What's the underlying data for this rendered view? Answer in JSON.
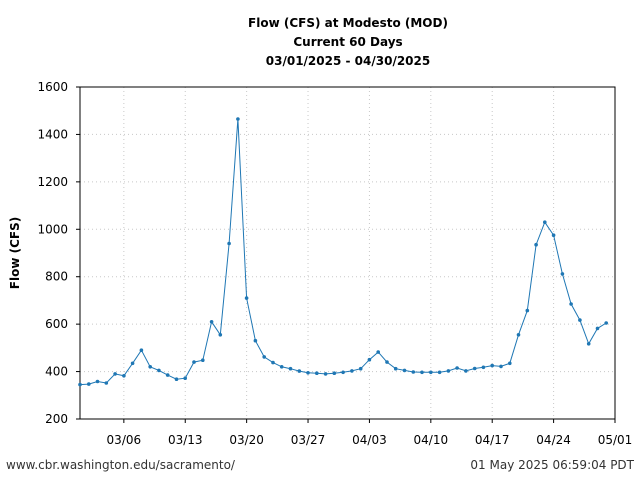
{
  "chart_data": {
    "type": "line",
    "title_lines": [
      "Flow (CFS) at Modesto (MOD)",
      "Current 60 Days",
      "03/01/2025 - 04/30/2025"
    ],
    "xlabel": "",
    "ylabel": "Flow (CFS)",
    "x_start": "2025-03-01",
    "ylim": [
      200,
      1600
    ],
    "y_ticks": [
      200,
      400,
      600,
      800,
      1000,
      1200,
      1400,
      1600
    ],
    "x_ticks": [
      {
        "date": "2025-03-06",
        "label": "03/06"
      },
      {
        "date": "2025-03-13",
        "label": "03/13"
      },
      {
        "date": "2025-03-20",
        "label": "03/20"
      },
      {
        "date": "2025-03-27",
        "label": "03/27"
      },
      {
        "date": "2025-04-03",
        "label": "04/03"
      },
      {
        "date": "2025-04-10",
        "label": "04/10"
      },
      {
        "date": "2025-04-17",
        "label": "04/17"
      },
      {
        "date": "2025-04-24",
        "label": "04/24"
      },
      {
        "date": "2025-05-01",
        "label": "05/01"
      }
    ],
    "grid": true,
    "color": "#1f77b4",
    "series": [
      {
        "dates": [
          "2025-03-01",
          "2025-03-02",
          "2025-03-03",
          "2025-03-04",
          "2025-03-05",
          "2025-03-06",
          "2025-03-07",
          "2025-03-08",
          "2025-03-09",
          "2025-03-10",
          "2025-03-11",
          "2025-03-12",
          "2025-03-13",
          "2025-03-14",
          "2025-03-15",
          "2025-03-16",
          "2025-03-17",
          "2025-03-18",
          "2025-03-19",
          "2025-03-20",
          "2025-03-21",
          "2025-03-22",
          "2025-03-23",
          "2025-03-24",
          "2025-03-25",
          "2025-03-26",
          "2025-03-27",
          "2025-03-28",
          "2025-03-29",
          "2025-03-30",
          "2025-03-31",
          "2025-04-01",
          "2025-04-02",
          "2025-04-03",
          "2025-04-04",
          "2025-04-05",
          "2025-04-06",
          "2025-04-07",
          "2025-04-08",
          "2025-04-09",
          "2025-04-10",
          "2025-04-11",
          "2025-04-12",
          "2025-04-13",
          "2025-04-14",
          "2025-04-15",
          "2025-04-16",
          "2025-04-17",
          "2025-04-18",
          "2025-04-19",
          "2025-04-20",
          "2025-04-21",
          "2025-04-22",
          "2025-04-23",
          "2025-04-24",
          "2025-04-25",
          "2025-04-26",
          "2025-04-27",
          "2025-04-28",
          "2025-04-29",
          "2025-04-30"
        ],
        "values": [
          345,
          347,
          358,
          352,
          390,
          382,
          435,
          490,
          420,
          405,
          385,
          368,
          372,
          440,
          448,
          610,
          555,
          940,
          1465,
          710,
          530,
          462,
          438,
          420,
          412,
          402,
          395,
          393,
          390,
          393,
          397,
          403,
          412,
          450,
          482,
          440,
          412,
          405,
          398,
          397,
          397,
          397,
          403,
          415,
          403,
          413,
          418,
          425,
          422,
          435,
          555,
          657,
          935,
          1030,
          975,
          812,
          685,
          617,
          517,
          582,
          605
        ]
      }
    ]
  },
  "footer": {
    "left": "www.cbr.washington.edu/sacramento/",
    "right": "01 May 2025 06:59:04 PDT"
  }
}
